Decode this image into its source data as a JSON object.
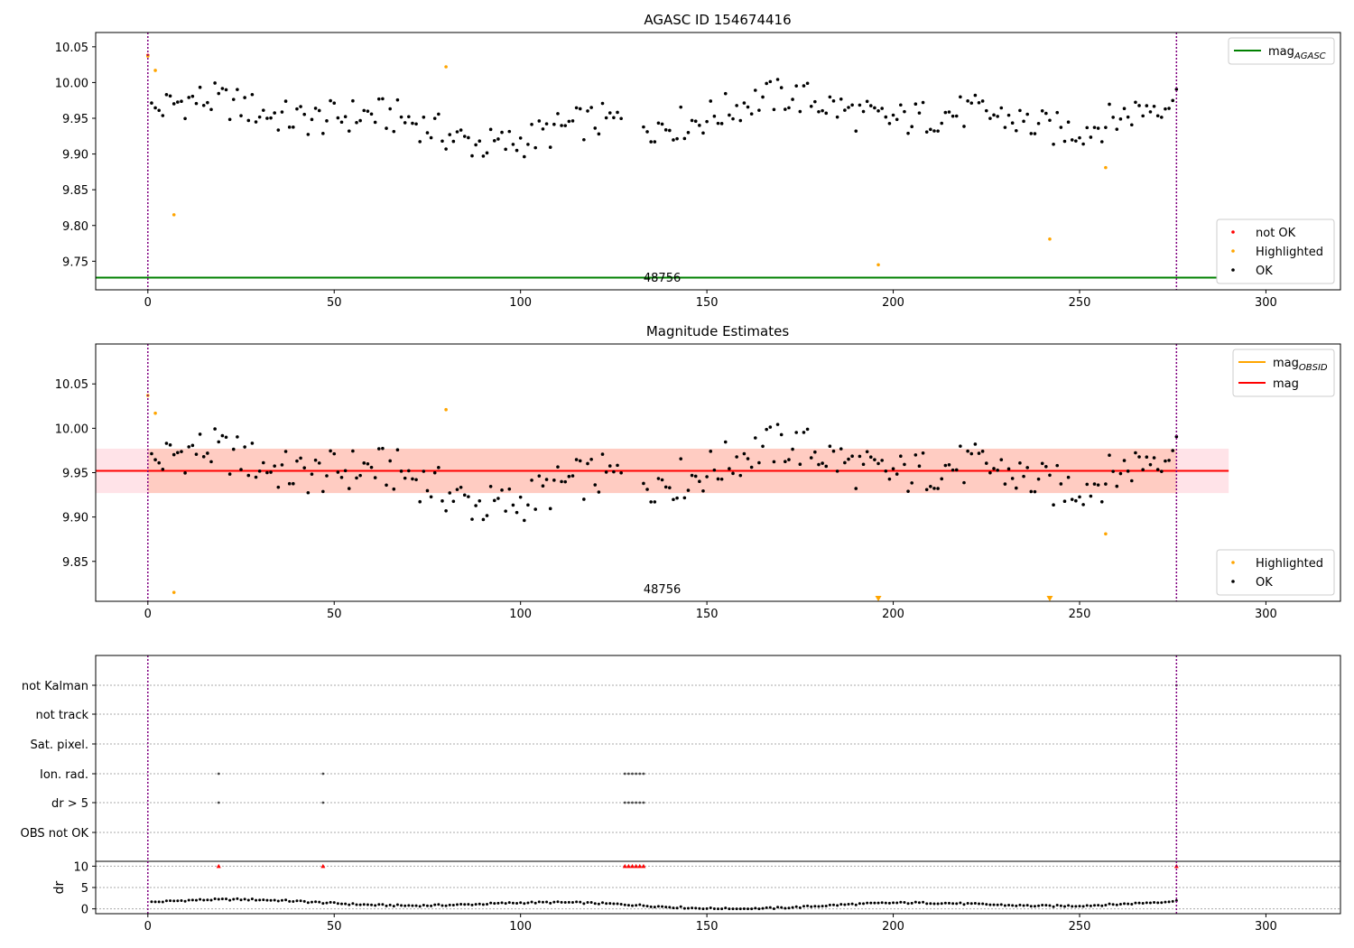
{
  "chart_data": [
    {
      "type": "scatter",
      "title": "AGASC ID 154674416",
      "xlim": [
        -14,
        320
      ],
      "ylim": [
        9.71,
        10.07
      ],
      "xticks": [
        0,
        50,
        100,
        150,
        200,
        250,
        300
      ],
      "yticks": [
        9.75,
        9.8,
        9.85,
        9.9,
        9.95,
        10.0,
        10.05
      ],
      "ytick_labels": [
        "9.75",
        "9.80",
        "9.85",
        "9.90",
        "9.95",
        "10.00",
        "10.05"
      ],
      "vlines": [
        0,
        276
      ],
      "obsid_label": "48756",
      "obsid_label_x": 138,
      "mag_agasc": 9.727,
      "mag_agasc_xmax": 290,
      "legend_top": {
        "entries": [
          {
            "label": "mag",
            "sub": "AGASC",
            "color": "#008000"
          }
        ]
      },
      "legend_bottom": {
        "entries": [
          {
            "label": "not OK",
            "color": "#ff0000"
          },
          {
            "label": "Highlighted",
            "color": "#ffa500"
          },
          {
            "label": "OK",
            "color": "#000000"
          }
        ]
      },
      "series": [
        {
          "name": "not OK",
          "color": "#ff0000",
          "points": [
            [
              0,
              10.038
            ]
          ]
        },
        {
          "name": "Highlighted",
          "color": "#ffa500",
          "points": [
            [
              0,
              10.037
            ],
            [
              2,
              10.017
            ],
            [
              7,
              9.815
            ],
            [
              80,
              10.022
            ],
            [
              196,
              9.745
            ],
            [
              242,
              9.781
            ],
            [
              257,
              9.881
            ]
          ]
        }
      ]
    },
    {
      "type": "scatter",
      "title": "Magnitude Estimates",
      "xlim": [
        -14,
        320
      ],
      "ylim": [
        9.805,
        10.095
      ],
      "xticks": [
        0,
        50,
        100,
        150,
        200,
        250,
        300
      ],
      "yticks": [
        9.85,
        9.9,
        9.95,
        10.0,
        10.05
      ],
      "ytick_labels": [
        "9.85",
        "9.90",
        "9.95",
        "10.00",
        "10.05"
      ],
      "vlines": [
        0,
        276
      ],
      "obsid_label": "48756",
      "obsid_label_x": 138,
      "mag": 9.952,
      "mag_band": [
        9.927,
        9.977
      ],
      "mag_xmax": 290,
      "mag_obsid": 9.952,
      "mag_obsid_range": [
        0,
        276
      ],
      "mag_obsid_band": [
        9.927,
        9.977
      ],
      "legend_top": {
        "entries": [
          {
            "label": "mag",
            "sub": "OBSID",
            "color": "#ffa500"
          },
          {
            "label": "mag",
            "sub": "",
            "color": "#ff0000"
          }
        ]
      },
      "legend_bottom": {
        "entries": [
          {
            "label": "Highlighted",
            "color": "#ffa500"
          },
          {
            "label": "OK",
            "color": "#000000"
          }
        ]
      },
      "series": [
        {
          "name": "Highlighted",
          "color": "#ffa500",
          "points": [
            [
              0,
              10.037
            ],
            [
              2,
              10.017
            ],
            [
              7,
              9.815
            ],
            [
              80,
              10.021
            ],
            [
              257,
              9.881
            ]
          ]
        },
        {
          "name": "Highlighted (below range)",
          "color": "#ffa500",
          "marker": "triangle-down",
          "points": [
            [
              196,
              9.805
            ],
            [
              242,
              9.805
            ]
          ]
        }
      ]
    },
    {
      "type": "scatter",
      "xlim": [
        -14,
        320
      ],
      "flag_rows": [
        "not Kalman",
        "not track",
        "Sat. pixel.",
        "Ion. rad.",
        "dr > 5",
        "OBS not OK"
      ],
      "vlines": [
        0,
        276
      ],
      "flags": {
        "Ion. rad.": [
          19,
          47,
          128,
          129,
          130,
          131,
          132,
          133
        ],
        "dr > 5": [
          19,
          47,
          128,
          129,
          130,
          131,
          132,
          133
        ],
        "not Kalman": [
          276
        ]
      },
      "dr_ylabel": "dr",
      "dr_yticks": [
        0,
        5,
        10
      ],
      "dr_ylim": [
        -0.5,
        10.5
      ],
      "dr_high": [
        [
          19,
          10
        ],
        [
          47,
          10
        ],
        [
          128,
          10
        ],
        [
          129,
          10
        ],
        [
          130,
          10
        ],
        [
          131,
          10
        ],
        [
          132,
          10
        ],
        [
          133,
          10
        ],
        [
          276,
          10
        ]
      ],
      "xticks": [
        0,
        50,
        100,
        150,
        200,
        250,
        300
      ]
    }
  ]
}
